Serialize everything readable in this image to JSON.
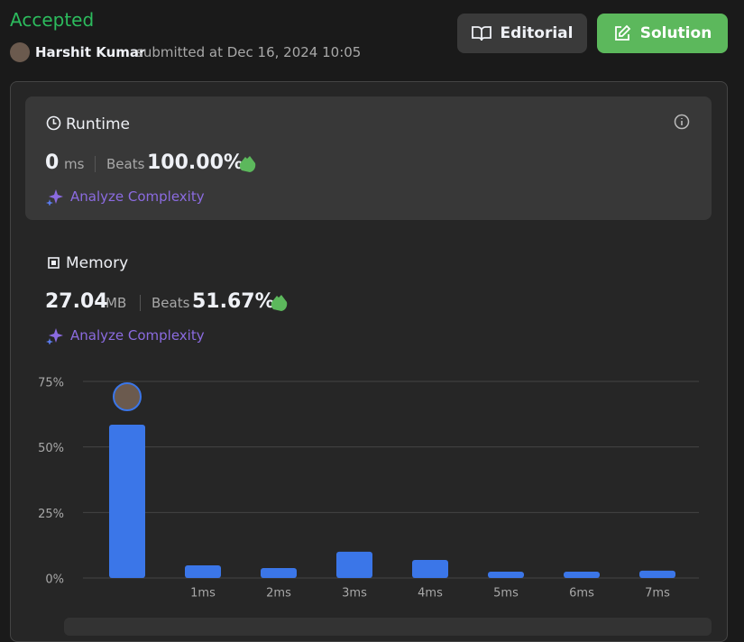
{
  "header": {
    "status": "Accepted",
    "user": "Harshit Kumar",
    "submitted": "submitted at Dec 16, 2024 10:05"
  },
  "buttons": {
    "editorial": "Editorial",
    "solution": "Solution"
  },
  "runtime": {
    "title": "Runtime",
    "value": "0",
    "unit": "ms",
    "beats_label": "Beats",
    "beats": "100.00%",
    "analyze": "Analyze Complexity"
  },
  "memory": {
    "title": "Memory",
    "value": "27.04",
    "unit": "MB",
    "beats_label": "Beats",
    "beats": "51.67%",
    "analyze": "Analyze Complexity"
  },
  "chart_data": {
    "type": "bar",
    "categories": [
      null,
      "1ms",
      "2ms",
      "3ms",
      "4ms",
      "5ms",
      "6ms",
      "7ms"
    ],
    "values": [
      58.5,
      4.8,
      3.8,
      10,
      6.9,
      2.4,
      2.4,
      2.8
    ],
    "color": "#3b76e8",
    "ylim": [
      0,
      75
    ],
    "yticks": [
      {
        "value": 0,
        "label": "0%"
      },
      {
        "value": 25,
        "label": "25%"
      },
      {
        "value": 50,
        "label": "50%"
      },
      {
        "value": 75,
        "label": "75%"
      }
    ],
    "grid": true
  }
}
